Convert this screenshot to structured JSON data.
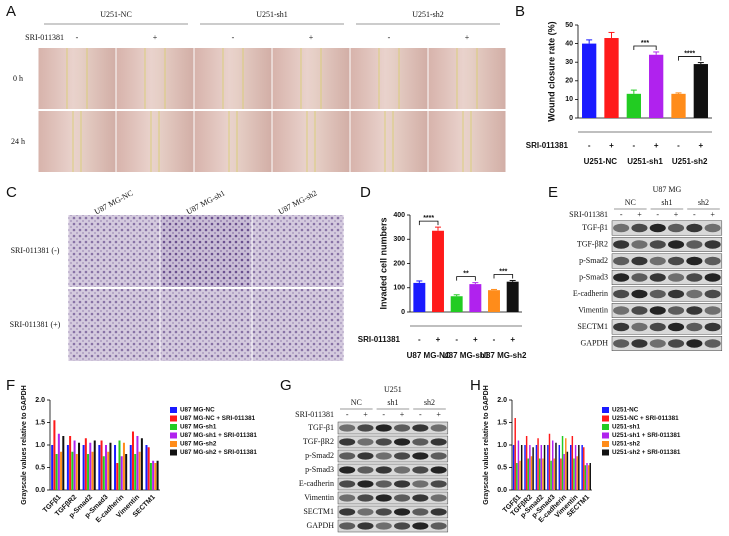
{
  "panel_labels": [
    "A",
    "B",
    "C",
    "D",
    "E",
    "F",
    "G",
    "H"
  ],
  "panel_a": {
    "columns": [
      "U251-NC",
      "U251-sh1",
      "U251-sh2"
    ],
    "treatment": "SRI-011381",
    "signs": [
      "-",
      "+",
      "-",
      "+",
      "-",
      "+"
    ],
    "rows": [
      "0 h",
      "24 h"
    ]
  },
  "panel_c": {
    "columns": [
      "U87 MG-NC",
      "U87 MG-sh1",
      "U87 MG-sh2"
    ],
    "rows": [
      "SRI-011381 (-)",
      "SRI-011381 (+)"
    ]
  },
  "panel_e": {
    "cell_line": "U87 MG",
    "groups": [
      "NC",
      "sh1",
      "sh2"
    ],
    "treatment": "SRI-011381",
    "signs": [
      "-",
      "+",
      "-",
      "+",
      "-",
      "+"
    ],
    "proteins": [
      "TGF-β1",
      "TGF-βR2",
      "p-Smad2",
      "p-Smad3",
      "E-cadherin",
      "Vimentin",
      "SECTM1",
      "GAPDH"
    ]
  },
  "panel_g": {
    "cell_line": "U251",
    "groups": [
      "NC",
      "sh1",
      "sh2"
    ],
    "treatment": "SRI-011381",
    "signs": [
      "-",
      "+",
      "-",
      "+",
      "-",
      "+"
    ],
    "proteins": [
      "TGF-β1",
      "TGF-βR2",
      "p-Smad2",
      "p-Smad3",
      "E-cadherin",
      "Vimentin",
      "SECTM1",
      "GAPDH"
    ]
  },
  "chart_data": [
    {
      "type": "bar",
      "ylabel": "Wound closure rate (%)",
      "treatment": "SRI-011381",
      "categories": [
        "-",
        "+",
        "-",
        "+",
        "-",
        "+"
      ],
      "groups": [
        "U251-NC",
        "U251-sh1",
        "U251-sh2"
      ],
      "values": [
        40,
        43,
        13,
        34,
        13,
        29
      ],
      "errors": [
        2,
        3,
        2,
        1.5,
        0.5,
        0.8
      ],
      "colors": [
        "#1a1aff",
        "#ff1a1a",
        "#22cc22",
        "#b022ee",
        "#ff8c1a",
        "#111111"
      ],
      "annotations": [
        null,
        "***",
        "****"
      ],
      "ylim": [
        0,
        50
      ],
      "yticks": [
        0,
        10,
        20,
        30,
        40,
        50
      ]
    },
    {
      "type": "bar",
      "ylabel": "Invaded cell numbers",
      "treatment": "SRI-011381",
      "categories": [
        "-",
        "+",
        "-",
        "+",
        "-",
        "+"
      ],
      "groups": [
        "U87 MG-NC",
        "U87 MG-sh1",
        "U87 MG-sh2"
      ],
      "values": [
        120,
        335,
        65,
        115,
        90,
        125
      ],
      "errors": [
        8,
        15,
        6,
        6,
        3,
        5
      ],
      "colors": [
        "#1a1aff",
        "#ff1a1a",
        "#22cc22",
        "#b022ee",
        "#ff8c1a",
        "#111111"
      ],
      "annotations": [
        "****",
        "**",
        "***"
      ],
      "ylim": [
        0,
        400
      ],
      "yticks": [
        0,
        100,
        200,
        300,
        400
      ]
    },
    {
      "type": "grouped_bar",
      "ylabel": "Grayscale values relative to GAPDH",
      "categories": [
        "TGFβ1",
        "TGFβR2",
        "p-Smad2",
        "p-Smad3",
        "E-cadherin",
        "Vimentin",
        "SECTM1"
      ],
      "series": [
        {
          "name": "U87 MG-NC",
          "color": "#1a1aff",
          "values": [
            1.0,
            1.0,
            1.0,
            1.0,
            1.0,
            1.0,
            1.0
          ]
        },
        {
          "name": "U87 MG-NC + SRI-011381",
          "color": "#ff1a1a",
          "values": [
            1.55,
            1.2,
            1.15,
            1.1,
            0.6,
            1.3,
            0.95
          ]
        },
        {
          "name": "U87 MG-sh1",
          "color": "#22cc22",
          "values": [
            0.8,
            0.85,
            0.8,
            0.75,
            1.1,
            0.8,
            0.6
          ]
        },
        {
          "name": "U87 MG-sh1 + SRI-011381",
          "color": "#b022ee",
          "values": [
            1.25,
            1.1,
            1.05,
            1.0,
            0.75,
            1.2,
            0.65
          ]
        },
        {
          "name": "U87 MG-sh2",
          "color": "#ff8c1a",
          "values": [
            0.85,
            0.8,
            0.85,
            0.85,
            1.05,
            0.85,
            0.6
          ]
        },
        {
          "name": "U87 MG-sh2 + SRI-011381",
          "color": "#111111",
          "values": [
            1.2,
            1.05,
            1.1,
            1.05,
            0.8,
            1.15,
            0.65
          ]
        }
      ],
      "ylim": [
        0,
        2
      ],
      "yticks": [
        {
          "value": 0,
          "label": "0.0"
        },
        0.5,
        {
          "value": 1,
          "label": "1.0"
        },
        1.5,
        {
          "value": 2,
          "label": "2.0"
        }
      ]
    },
    {
      "type": "grouped_bar",
      "ylabel": "Grayscale values relative to GAPDH",
      "categories": [
        "TGFβ1",
        "TGFβR2",
        "p-Smad2",
        "p-Smad3",
        "E-cadherin",
        "Vimentin",
        "SECTM1"
      ],
      "series": [
        {
          "name": "U251-NC",
          "color": "#1a1aff",
          "values": [
            1.0,
            1.0,
            1.0,
            1.0,
            1.0,
            1.0,
            1.0
          ]
        },
        {
          "name": "U251-NC + SRI-011381",
          "color": "#ff1a1a",
          "values": [
            1.6,
            1.2,
            1.15,
            1.25,
            0.7,
            1.2,
            0.95
          ]
        },
        {
          "name": "U251-sh1",
          "color": "#22cc22",
          "values": [
            0.6,
            0.7,
            0.7,
            0.65,
            1.2,
            0.7,
            0.55
          ]
        },
        {
          "name": "U251-sh1 + SRI-011381",
          "color": "#b022ee",
          "values": [
            1.1,
            1.0,
            1.0,
            1.1,
            0.8,
            1.0,
            0.6
          ]
        },
        {
          "name": "U251-sh2",
          "color": "#ff8c1a",
          "values": [
            0.65,
            0.75,
            0.7,
            0.7,
            1.15,
            0.75,
            0.55
          ]
        },
        {
          "name": "U251-sh2 + SRI-011381",
          "color": "#111111",
          "values": [
            1.0,
            0.95,
            1.0,
            1.05,
            0.85,
            1.0,
            0.6
          ]
        }
      ],
      "ylim": [
        0,
        2
      ],
      "yticks": [
        {
          "value": 0,
          "label": "0.0"
        },
        0.5,
        {
          "value": 1,
          "label": "1.0"
        },
        1.5,
        {
          "value": 2,
          "label": "2.0"
        }
      ]
    }
  ]
}
